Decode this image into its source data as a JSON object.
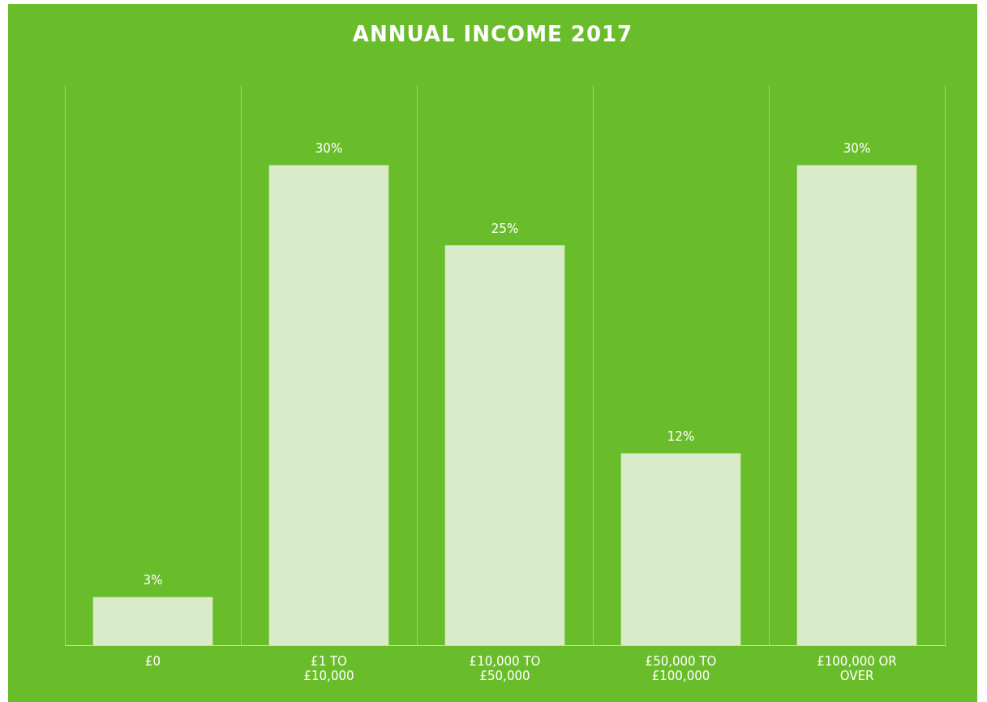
{
  "chart_data": {
    "type": "bar",
    "title": "ANNUAL INCOME 2017",
    "categories": [
      "£0",
      "£1 TO £10,000",
      "£10,000 TO £50,000",
      "£50,000 TO £100,000",
      "£100,000 OR OVER"
    ],
    "values": [
      3,
      30,
      25,
      12,
      30
    ],
    "color": "#d9ecc9",
    "value_labels": [
      "3%",
      "30%",
      "25%",
      "12%",
      "30%"
    ],
    "grid": "x"
  }
}
